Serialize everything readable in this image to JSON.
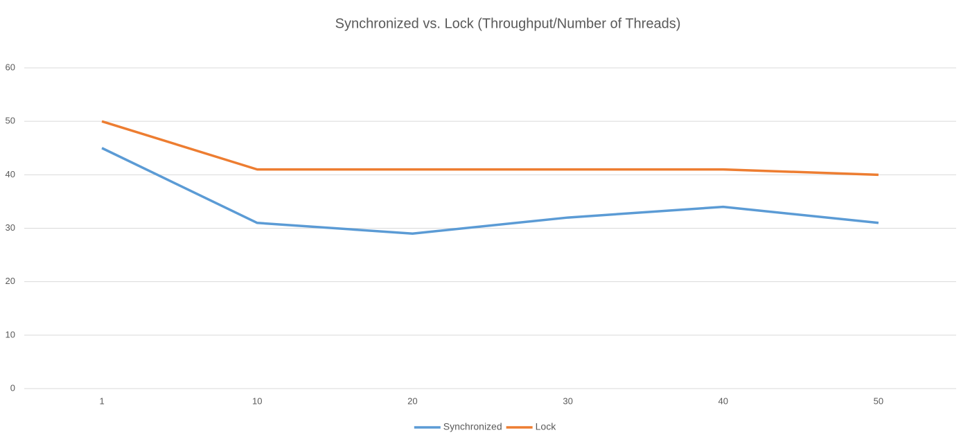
{
  "chart_data": {
    "type": "line",
    "title": "Synchronized vs. Lock (Throughput/Number of Threads)",
    "categories": [
      "1",
      "10",
      "20",
      "30",
      "40",
      "50"
    ],
    "series": [
      {
        "name": "Synchronized",
        "color": "#5b9bd5",
        "values": [
          45,
          31,
          29,
          32,
          34,
          31
        ]
      },
      {
        "name": "Lock",
        "color": "#ed7d31",
        "values": [
          50,
          41,
          41,
          41,
          41,
          40
        ]
      }
    ],
    "ylim": [
      0,
      60
    ],
    "yticks": [
      0,
      10,
      20,
      30,
      40,
      50,
      60
    ],
    "grid": true,
    "legend": "bottom"
  }
}
